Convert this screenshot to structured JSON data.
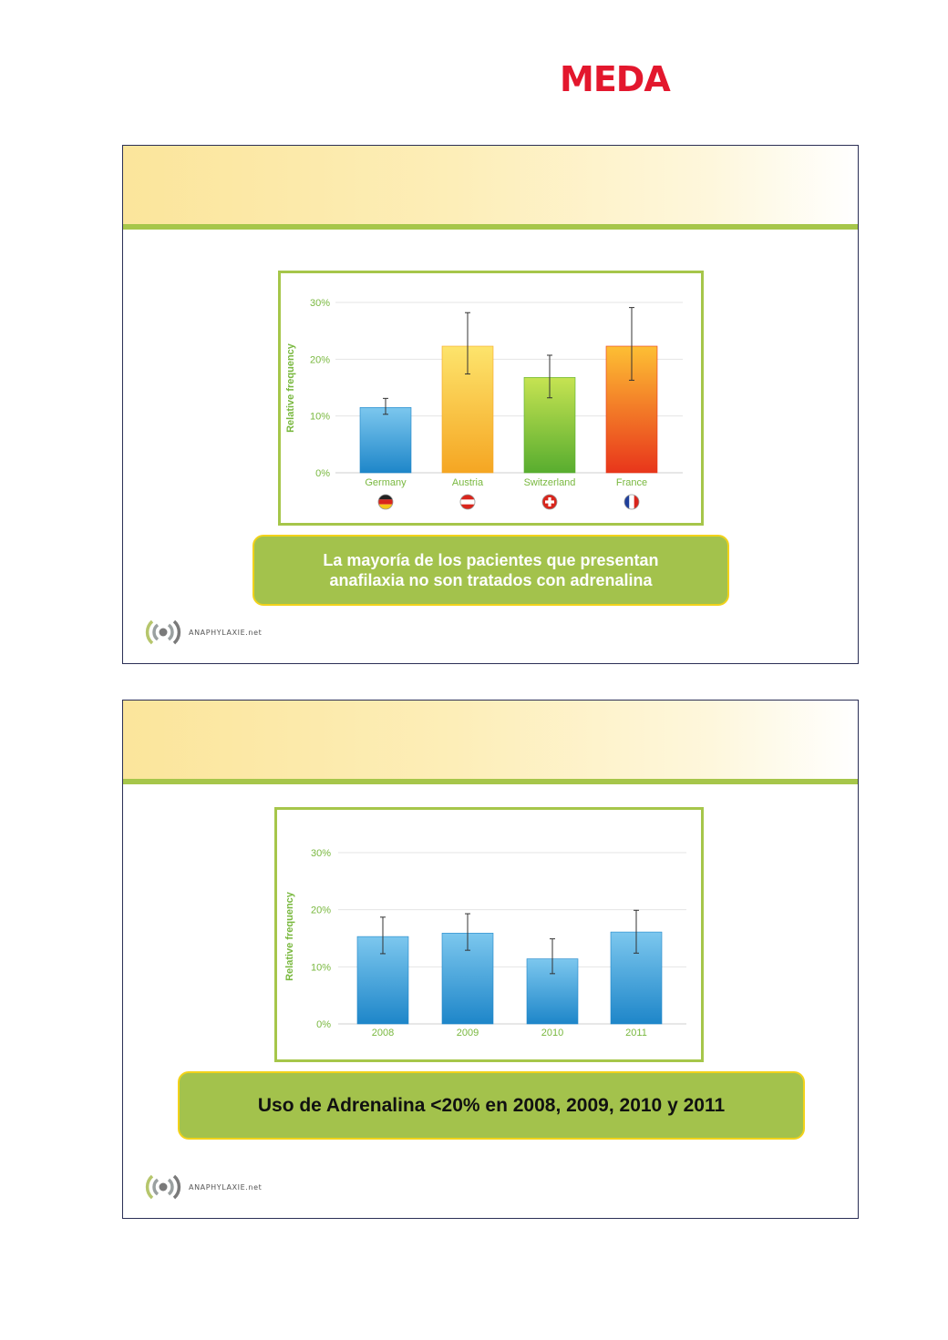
{
  "brand": {
    "logo_text": "MEDA",
    "logo_color": "#e3172d"
  },
  "slides": [
    {
      "callout_lines": [
        "La mayoría de los pacientes que presentan",
        "anafilaxia no son tratados con adrenalina"
      ],
      "footer_brand": "ANAPHYLAXIE.net"
    },
    {
      "callout": "Uso de Adrenalina <20% en 2008, 2009, 2010 y 2011",
      "footer_brand": "ANAPHYLAXIE.net"
    }
  ],
  "chart_data": [
    {
      "type": "bar",
      "ylabel": "Relative frequency",
      "ylim": [
        0,
        30
      ],
      "yticks": [
        "0%",
        "10%",
        "20%",
        "30%"
      ],
      "grid": true,
      "categories": [
        "Germany",
        "Austria",
        "Switzerland",
        "France"
      ],
      "values": [
        11.5,
        22.3,
        16.8,
        22.3
      ],
      "error_low": [
        10.3,
        17.4,
        13.2,
        16.3
      ],
      "error_high": [
        13.1,
        28.2,
        20.7,
        29.1
      ],
      "colors": [
        [
          "#7cc7ee",
          "#1e86c9"
        ],
        [
          "#fde46c",
          "#f5a623"
        ],
        [
          "#c6e352",
          "#58ad2f"
        ],
        [
          "#fdbf34",
          "#e8361b"
        ]
      ],
      "flags": [
        "germany-flag-icon",
        "austria-flag-icon",
        "switzerland-flag-icon",
        "france-flag-icon"
      ]
    },
    {
      "type": "bar",
      "ylabel": "Relative frequency",
      "ylim": [
        0,
        30
      ],
      "yticks": [
        "0%",
        "10%",
        "20%",
        "30%"
      ],
      "grid": true,
      "categories": [
        "2008",
        "2009",
        "2010",
        "2011"
      ],
      "values": [
        15.3,
        15.9,
        11.4,
        16.1
      ],
      "error_low": [
        12.3,
        12.9,
        8.8,
        12.4
      ],
      "error_high": [
        18.7,
        19.3,
        14.9,
        19.9
      ],
      "colors": [
        [
          "#7cc7ee",
          "#1e86c9"
        ],
        [
          "#7cc7ee",
          "#1e86c9"
        ],
        [
          "#7cc7ee",
          "#1e86c9"
        ],
        [
          "#7cc7ee",
          "#1e86c9"
        ]
      ]
    }
  ]
}
